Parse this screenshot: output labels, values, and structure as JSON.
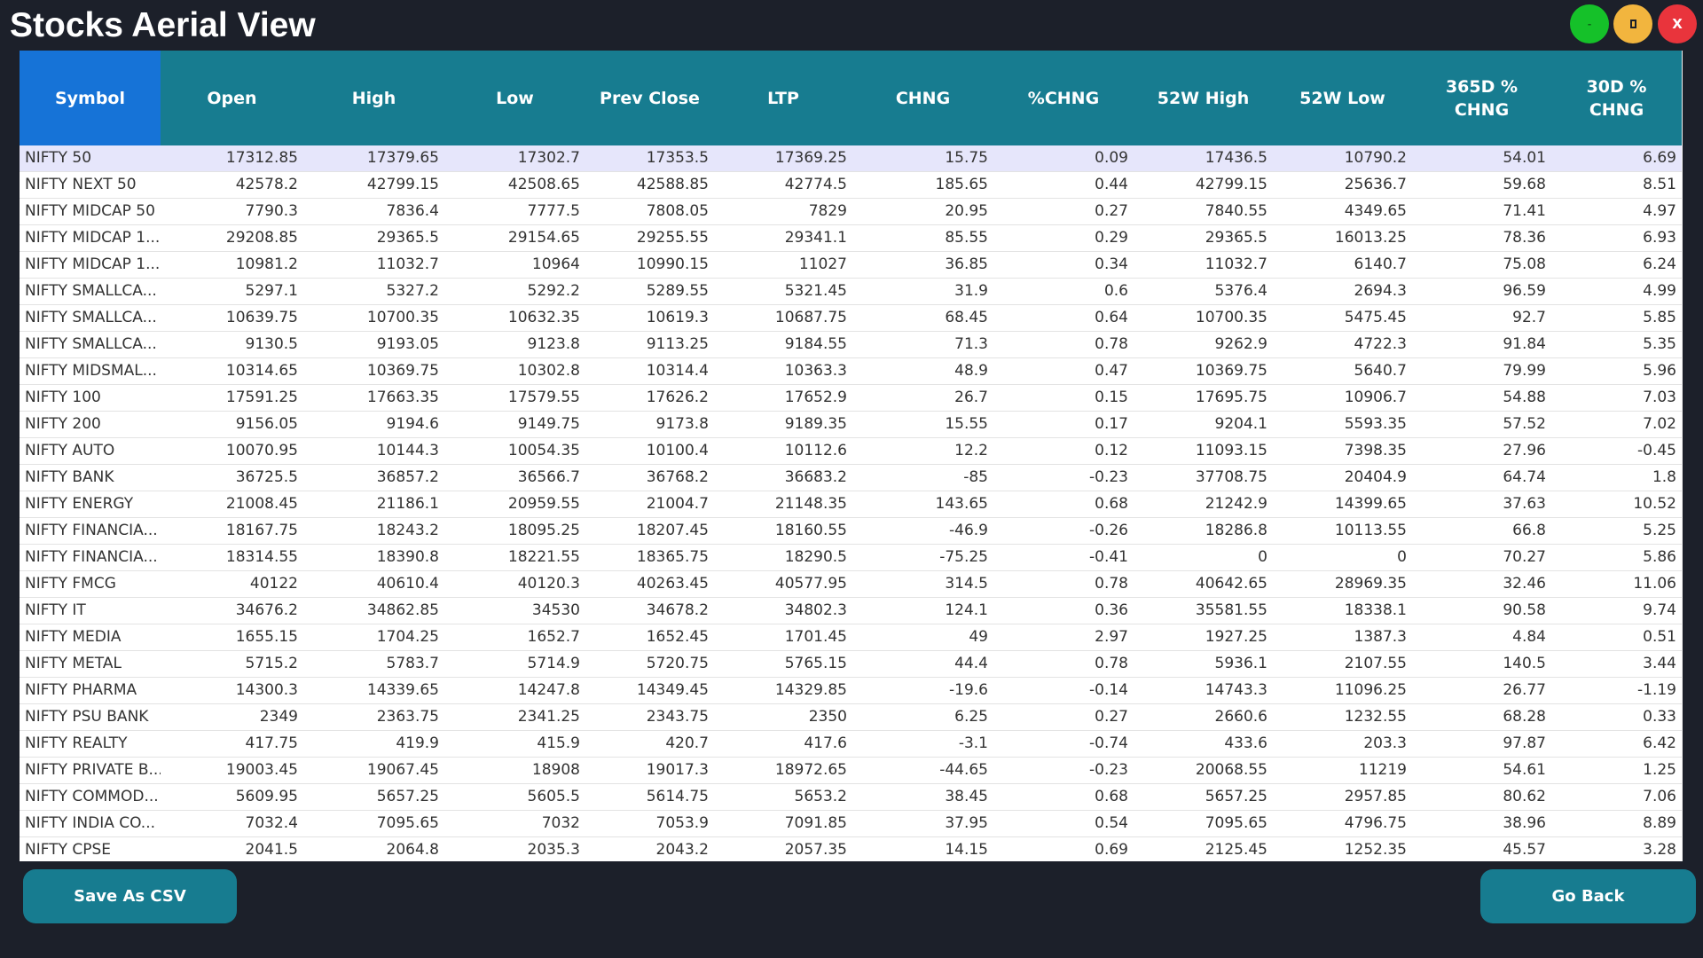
{
  "window": {
    "title": "Stocks Aerial View",
    "minimize_label": "-",
    "close_label": "X"
  },
  "table": {
    "columns": [
      "Symbol",
      "Open",
      "High",
      "Low",
      "Prev Close",
      "LTP",
      "CHNG",
      "%CHNG",
      "52W High",
      "52W Low",
      "365D %\nCHNG",
      "30D %\nCHNG"
    ],
    "rows": [
      [
        "NIFTY 50",
        "17312.85",
        "17379.65",
        "17302.7",
        "17353.5",
        "17369.25",
        "15.75",
        "0.09",
        "17436.5",
        "10790.2",
        "54.01",
        "6.69"
      ],
      [
        "NIFTY NEXT 50",
        "42578.2",
        "42799.15",
        "42508.65",
        "42588.85",
        "42774.5",
        "185.65",
        "0.44",
        "42799.15",
        "25636.7",
        "59.68",
        "8.51"
      ],
      [
        "NIFTY MIDCAP 50",
        "7790.3",
        "7836.4",
        "7777.5",
        "7808.05",
        "7829",
        "20.95",
        "0.27",
        "7840.55",
        "4349.65",
        "71.41",
        "4.97"
      ],
      [
        "NIFTY MIDCAP 1...",
        "29208.85",
        "29365.5",
        "29154.65",
        "29255.55",
        "29341.1",
        "85.55",
        "0.29",
        "29365.5",
        "16013.25",
        "78.36",
        "6.93"
      ],
      [
        "NIFTY MIDCAP 1...",
        "10981.2",
        "11032.7",
        "10964",
        "10990.15",
        "11027",
        "36.85",
        "0.34",
        "11032.7",
        "6140.7",
        "75.08",
        "6.24"
      ],
      [
        "NIFTY SMALLCA...",
        "5297.1",
        "5327.2",
        "5292.2",
        "5289.55",
        "5321.45",
        "31.9",
        "0.6",
        "5376.4",
        "2694.3",
        "96.59",
        "4.99"
      ],
      [
        "NIFTY SMALLCA...",
        "10639.75",
        "10700.35",
        "10632.35",
        "10619.3",
        "10687.75",
        "68.45",
        "0.64",
        "10700.35",
        "5475.45",
        "92.7",
        "5.85"
      ],
      [
        "NIFTY SMALLCA...",
        "9130.5",
        "9193.05",
        "9123.8",
        "9113.25",
        "9184.55",
        "71.3",
        "0.78",
        "9262.9",
        "4722.3",
        "91.84",
        "5.35"
      ],
      [
        "NIFTY MIDSMAL...",
        "10314.65",
        "10369.75",
        "10302.8",
        "10314.4",
        "10363.3",
        "48.9",
        "0.47",
        "10369.75",
        "5640.7",
        "79.99",
        "5.96"
      ],
      [
        "NIFTY 100",
        "17591.25",
        "17663.35",
        "17579.55",
        "17626.2",
        "17652.9",
        "26.7",
        "0.15",
        "17695.75",
        "10906.7",
        "54.88",
        "7.03"
      ],
      [
        "NIFTY 200",
        "9156.05",
        "9194.6",
        "9149.75",
        "9173.8",
        "9189.35",
        "15.55",
        "0.17",
        "9204.1",
        "5593.35",
        "57.52",
        "7.02"
      ],
      [
        "NIFTY AUTO",
        "10070.95",
        "10144.3",
        "10054.35",
        "10100.4",
        "10112.6",
        "12.2",
        "0.12",
        "11093.15",
        "7398.35",
        "27.96",
        "-0.45"
      ],
      [
        "NIFTY BANK",
        "36725.5",
        "36857.2",
        "36566.7",
        "36768.2",
        "36683.2",
        "-85",
        "-0.23",
        "37708.75",
        "20404.9",
        "64.74",
        "1.8"
      ],
      [
        "NIFTY ENERGY",
        "21008.45",
        "21186.1",
        "20959.55",
        "21004.7",
        "21148.35",
        "143.65",
        "0.68",
        "21242.9",
        "14399.65",
        "37.63",
        "10.52"
      ],
      [
        "NIFTY FINANCIA...",
        "18167.75",
        "18243.2",
        "18095.25",
        "18207.45",
        "18160.55",
        "-46.9",
        "-0.26",
        "18286.8",
        "10113.55",
        "66.8",
        "5.25"
      ],
      [
        "NIFTY FINANCIA...",
        "18314.55",
        "18390.8",
        "18221.55",
        "18365.75",
        "18290.5",
        "-75.25",
        "-0.41",
        "0",
        "0",
        "70.27",
        "5.86"
      ],
      [
        "NIFTY FMCG",
        "40122",
        "40610.4",
        "40120.3",
        "40263.45",
        "40577.95",
        "314.5",
        "0.78",
        "40642.65",
        "28969.35",
        "32.46",
        "11.06"
      ],
      [
        "NIFTY IT",
        "34676.2",
        "34862.85",
        "34530",
        "34678.2",
        "34802.3",
        "124.1",
        "0.36",
        "35581.55",
        "18338.1",
        "90.58",
        "9.74"
      ],
      [
        "NIFTY MEDIA",
        "1655.15",
        "1704.25",
        "1652.7",
        "1652.45",
        "1701.45",
        "49",
        "2.97",
        "1927.25",
        "1387.3",
        "4.84",
        "0.51"
      ],
      [
        "NIFTY METAL",
        "5715.2",
        "5783.7",
        "5714.9",
        "5720.75",
        "5765.15",
        "44.4",
        "0.78",
        "5936.1",
        "2107.55",
        "140.5",
        "3.44"
      ],
      [
        "NIFTY PHARMA",
        "14300.3",
        "14339.65",
        "14247.8",
        "14349.45",
        "14329.85",
        "-19.6",
        "-0.14",
        "14743.3",
        "11096.25",
        "26.77",
        "-1.19"
      ],
      [
        "NIFTY PSU BANK",
        "2349",
        "2363.75",
        "2341.25",
        "2343.75",
        "2350",
        "6.25",
        "0.27",
        "2660.6",
        "1232.55",
        "68.28",
        "0.33"
      ],
      [
        "NIFTY REALTY",
        "417.75",
        "419.9",
        "415.9",
        "420.7",
        "417.6",
        "-3.1",
        "-0.74",
        "433.6",
        "203.3",
        "97.87",
        "6.42"
      ],
      [
        "NIFTY PRIVATE B...",
        "19003.45",
        "19067.45",
        "18908",
        "19017.3",
        "18972.65",
        "-44.65",
        "-0.23",
        "20068.55",
        "11219",
        "54.61",
        "1.25"
      ],
      [
        "NIFTY COMMOD...",
        "5609.95",
        "5657.25",
        "5605.5",
        "5614.75",
        "5653.2",
        "38.45",
        "0.68",
        "5657.25",
        "2957.85",
        "80.62",
        "7.06"
      ],
      [
        "NIFTY INDIA CO...",
        "7032.4",
        "7095.65",
        "7032",
        "7053.9",
        "7091.85",
        "37.95",
        "0.54",
        "7095.65",
        "4796.75",
        "38.96",
        "8.89"
      ],
      [
        "NIFTY CPSE",
        "2041.5",
        "2064.8",
        "2035.3",
        "2043.2",
        "2057.35",
        "14.15",
        "0.69",
        "2125.45",
        "1252.35",
        "45.57",
        "3.28"
      ]
    ]
  },
  "buttons": {
    "save_csv": "Save As CSV",
    "go_back": "Go Back"
  },
  "colors": {
    "background": "#1c202a",
    "header": "#177c90",
    "active_header": "#1673d7",
    "selected_row": "#e6e6fb",
    "minimize": "#15c129",
    "maximize": "#f2b53e",
    "close": "#e9343c"
  }
}
